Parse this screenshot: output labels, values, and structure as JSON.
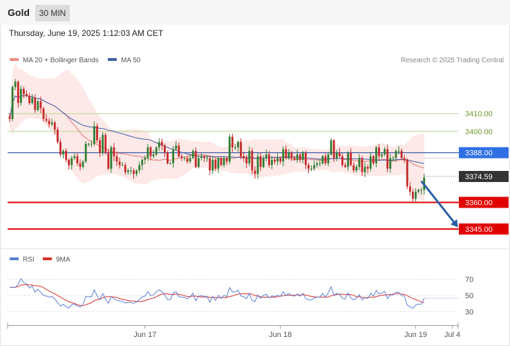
{
  "header": {
    "instrument": "Gold",
    "timeframe": "30 MIN",
    "datetime": "Thursday, June 19, 2025 1:12:03 AM CET",
    "credit": "Research © 2025 Trading Central"
  },
  "colors": {
    "bull": "#2e7d32",
    "bear": "#c62828",
    "bands_fill": "#fde3e1",
    "ma20": "#e57373",
    "ma50": "#3c5fa8",
    "resistance": "#b5d38f",
    "support": "#e00000",
    "pivot": "#3c5fa8",
    "arrow": "#2a5fa5",
    "rsi": "#5b7fd6",
    "rsi_ma": "#d9302c",
    "price_tag": "#333333",
    "pivot_tag": "#2f6fe4"
  },
  "chart_data": [
    {
      "type": "candlestick",
      "legend": [
        {
          "label": "MA 20 + Bollinger Bands",
          "color": "#f28b82"
        },
        {
          "label": "MA 50",
          "color": "#3c5fa8"
        }
      ],
      "ylim": [
        3336,
        3437
      ],
      "x_ticks": [
        {
          "index": 48,
          "label": "Jun 17"
        },
        {
          "index": 96,
          "label": "Jun 18"
        },
        {
          "index": 144,
          "label": "Jun 19"
        },
        {
          "index": 157,
          "label": "Jul 4"
        }
      ],
      "x_range": [
        0,
        159
      ],
      "levels": [
        {
          "value": 3410.0,
          "label": "3410.00",
          "kind": "resistance"
        },
        {
          "value": 3400.0,
          "label": "3400.00",
          "kind": "resistance"
        },
        {
          "value": 3388.0,
          "label": "3388.00",
          "kind": "pivot"
        },
        {
          "value": 3374.59,
          "label": "3374.59",
          "kind": "last"
        },
        {
          "value": 3360.0,
          "label": "3360.00",
          "kind": "support"
        },
        {
          "value": 3345.0,
          "label": "3345.00",
          "kind": "support"
        }
      ],
      "forecast_arrow": {
        "from": {
          "index": 146,
          "value": 3372
        },
        "to": {
          "index": 159,
          "value": 3346
        }
      },
      "close": [
        3407,
        3425,
        3428,
        3416,
        3424,
        3421,
        3420,
        3416,
        3419,
        3412,
        3417,
        3413,
        3407,
        3406,
        3404,
        3405,
        3401,
        3394,
        3387,
        3389,
        3384,
        3381,
        3385,
        3386,
        3382,
        3380,
        3383,
        3393,
        3393,
        3393,
        3403,
        3395,
        3388,
        3398,
        3388,
        3379,
        3391,
        3386,
        3383,
        3381,
        3381,
        3377,
        3378,
        3378,
        3376,
        3378,
        3381,
        3384,
        3385,
        3391,
        3386,
        3387,
        3391,
        3394,
        3392,
        3388,
        3382,
        3382,
        3390,
        3392,
        3386,
        3385,
        3385,
        3383,
        3385,
        3389,
        3380,
        3385,
        3386,
        3385,
        3385,
        3378,
        3384,
        3379,
        3385,
        3381,
        3385,
        3383,
        3397,
        3391,
        3391,
        3394,
        3386,
        3385,
        3382,
        3389,
        3378,
        3376,
        3386,
        3380,
        3385,
        3387,
        3381,
        3384,
        3383,
        3385,
        3383,
        3390,
        3385,
        3388,
        3385,
        3384,
        3387,
        3384,
        3388,
        3381,
        3379,
        3379,
        3381,
        3382,
        3382,
        3386,
        3382,
        3387,
        3395,
        3385,
        3388,
        3386,
        3381,
        3380,
        3388,
        3381,
        3378,
        3380,
        3385,
        3377,
        3380,
        3379,
        3386,
        3382,
        3391,
        3386,
        3387,
        3390,
        3379,
        3385,
        3385,
        3389,
        3389,
        3385,
        3384,
        3369,
        3366,
        3362,
        3366,
        3367,
        3367,
        3374
      ],
      "rsi": {
        "legend": [
          {
            "label": "RSI",
            "color": "#5b7fd6"
          },
          {
            "label": "9MA",
            "color": "#d9302c"
          }
        ],
        "y_ticks": [
          70,
          50,
          30
        ],
        "ylim": [
          20,
          80
        ]
      }
    }
  ]
}
